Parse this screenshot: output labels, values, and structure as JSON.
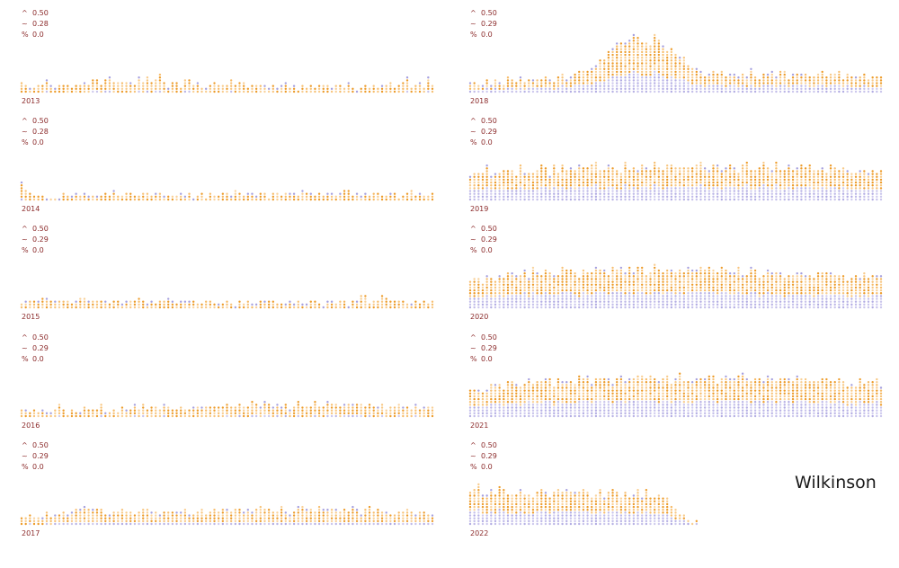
{
  "title": "Wilkinson",
  "stat_symbols": [
    "^",
    "~",
    "%"
  ],
  "colors": {
    "stat_text": "#8b2a2a",
    "warm": "#f3a12e",
    "cool": "#8f87d6",
    "title": "#1a1a1a"
  },
  "chart_data": [
    {
      "type": "scatter",
      "year": "2013",
      "stats": [
        "0.50",
        "0.28",
        "0.0"
      ],
      "intensity": 0.14,
      "peak": null,
      "profile": [
        4,
        3,
        2,
        2,
        3,
        3,
        5,
        3,
        2,
        3,
        4,
        3,
        2,
        3,
        3,
        4,
        3,
        5,
        4,
        3,
        5,
        6,
        5,
        4,
        3,
        4,
        4,
        3,
        5,
        4,
        6,
        4,
        5,
        7,
        4,
        3,
        4,
        3,
        2,
        5,
        5,
        3,
        4,
        3,
        2,
        3,
        4,
        4,
        3,
        2,
        4,
        3,
        4,
        4,
        3,
        2,
        3,
        3,
        3,
        2,
        3,
        2,
        2,
        3,
        2,
        3,
        2,
        2,
        2,
        3,
        2,
        3,
        3,
        4,
        2,
        3,
        3,
        2,
        3,
        2,
        2,
        2,
        3,
        2,
        3,
        2,
        3,
        3,
        4,
        2,
        3,
        4,
        5,
        2,
        3,
        4,
        2,
        6,
        3
      ]
    },
    {
      "type": "scatter",
      "year": "2014",
      "stats": [
        "0.50",
        "0.28",
        "0.0"
      ],
      "intensity": 0.1,
      "peak": null,
      "profile": [
        7,
        5,
        3,
        2,
        2,
        2,
        1,
        1,
        2,
        1,
        2,
        2,
        2,
        3,
        2,
        2,
        2,
        3,
        2,
        2,
        3,
        2,
        3,
        2,
        2,
        3,
        3,
        2,
        2,
        3,
        3,
        2,
        3,
        3,
        2,
        3,
        3,
        2,
        3,
        2,
        3,
        2,
        2,
        2,
        2,
        3,
        2,
        2,
        3,
        3,
        2,
        3,
        3,
        2,
        3,
        2,
        2,
        3,
        3,
        2,
        3,
        3,
        2,
        3,
        3,
        3,
        2,
        3,
        3,
        2,
        2,
        3,
        2,
        3,
        3,
        2,
        3,
        3,
        4,
        2,
        3,
        2,
        3,
        2,
        3,
        3,
        2,
        2,
        3,
        3,
        2,
        2,
        3,
        3,
        2,
        3,
        2,
        2,
        3
      ]
    },
    {
      "type": "scatter",
      "year": "2015",
      "stats": [
        "0.50",
        "0.29",
        "0.0"
      ],
      "intensity": 0.12,
      "peak": null,
      "profile": [
        2,
        3,
        2,
        3,
        3,
        4,
        3,
        3,
        2,
        4,
        3,
        4,
        3,
        3,
        4,
        4,
        3,
        3,
        2,
        3,
        3,
        2,
        2,
        3,
        2,
        3,
        3,
        3,
        4,
        3,
        2,
        3,
        2,
        3,
        3,
        4,
        3,
        2,
        3,
        3,
        2,
        2,
        2,
        3,
        2,
        3,
        2,
        2,
        2,
        3,
        2,
        2,
        3,
        2,
        3,
        2,
        3,
        3,
        2,
        3,
        3,
        2,
        2,
        2,
        3,
        2,
        3,
        2,
        2,
        3,
        3,
        2,
        2,
        3,
        3,
        2,
        3,
        3,
        2,
        3,
        3,
        4,
        5,
        3,
        3,
        3,
        4,
        4,
        3,
        3,
        3,
        3,
        2,
        2,
        3,
        2,
        3,
        2,
        3
      ]
    },
    {
      "type": "scatter",
      "year": "2016",
      "stats": [
        "0.50",
        "0.29",
        "0.0"
      ],
      "intensity": 0.14,
      "peak": null,
      "profile": [
        3,
        2,
        2,
        3,
        2,
        3,
        2,
        3,
        2,
        4,
        3,
        2,
        3,
        3,
        2,
        3,
        2,
        3,
        3,
        4,
        3,
        2,
        3,
        3,
        4,
        3,
        3,
        4,
        3,
        4,
        3,
        4,
        4,
        3,
        5,
        4,
        4,
        3,
        4,
        4,
        3,
        4,
        4,
        3,
        4,
        4,
        3,
        4,
        4,
        5,
        4,
        4,
        5,
        4,
        4,
        6,
        5,
        4,
        6,
        5,
        4,
        5,
        4,
        5,
        4,
        4,
        5,
        4,
        4,
        4,
        5,
        4,
        4,
        5,
        4,
        5,
        4,
        5,
        5,
        6,
        5,
        5,
        4,
        5,
        4,
        4,
        5,
        3,
        4,
        4,
        5,
        4,
        4,
        3,
        4,
        3,
        4,
        4,
        4
      ]
    },
    {
      "type": "scatter",
      "year": "2017",
      "stats": [
        "0.50",
        "0.29",
        "0.0"
      ],
      "intensity": 0.16,
      "peak": null,
      "profile": [
        3,
        3,
        4,
        3,
        4,
        3,
        4,
        3,
        4,
        4,
        5,
        4,
        6,
        5,
        6,
        7,
        5,
        6,
        5,
        6,
        5,
        4,
        5,
        5,
        6,
        5,
        5,
        4,
        5,
        5,
        6,
        5,
        5,
        4,
        5,
        4,
        5,
        5,
        5,
        6,
        4,
        5,
        4,
        5,
        4,
        5,
        6,
        5,
        5,
        6,
        5,
        6,
        6,
        5,
        6,
        5,
        6,
        7,
        6,
        6,
        5,
        6,
        7,
        6,
        5,
        6,
        7,
        6,
        5,
        6,
        6,
        7,
        5,
        6,
        6,
        6,
        5,
        6,
        5,
        6,
        6,
        5,
        5,
        6,
        6,
        5,
        5,
        6,
        5,
        4,
        5,
        5,
        6,
        5,
        4,
        5,
        5,
        4,
        4
      ]
    },
    {
      "type": "scatter",
      "year": "2018",
      "stats": [
        "0.50",
        "0.29",
        "0.0"
      ],
      "intensity": 0.45,
      "peak": 50,
      "profile": [
        4,
        3,
        4,
        3,
        4,
        4,
        5,
        4,
        3,
        5,
        4,
        4,
        5,
        4,
        4,
        5,
        4,
        5,
        5,
        4,
        5,
        5,
        6,
        5,
        6,
        7,
        7,
        8,
        9,
        10,
        11,
        12,
        13,
        14,
        16,
        17,
        18,
        19,
        20,
        20,
        20,
        19,
        19,
        18,
        20,
        19,
        17,
        16,
        15,
        14,
        13,
        12,
        11,
        10,
        9,
        8,
        7,
        7,
        7,
        6,
        7,
        6,
        7,
        6,
        7,
        6,
        7,
        8,
        7,
        6,
        7,
        6,
        7,
        6,
        7,
        8,
        6,
        7,
        6,
        7,
        7,
        6,
        7,
        6,
        7,
        6,
        7,
        6,
        7,
        6,
        7,
        7,
        6,
        6,
        7,
        6,
        7,
        6,
        7
      ]
    },
    {
      "type": "scatter",
      "year": "2019",
      "stats": [
        "0.50",
        "0.29",
        "0.0"
      ],
      "intensity": 0.5,
      "peak": 60,
      "profile": [
        8,
        10,
        9,
        11,
        12,
        10,
        9,
        11,
        12,
        10,
        11,
        9,
        12,
        11,
        10,
        11,
        12,
        13,
        11,
        10,
        12,
        11,
        13,
        12,
        11,
        12,
        13,
        11,
        12,
        14,
        13,
        12,
        11,
        12,
        13,
        12,
        11,
        13,
        12,
        11,
        12,
        14,
        12,
        11,
        13,
        12,
        11,
        12,
        13,
        12,
        11,
        12,
        13,
        11,
        12,
        13,
        12,
        11,
        12,
        13,
        12,
        11,
        13,
        12,
        11,
        12,
        13,
        12,
        11,
        12,
        13,
        11,
        12,
        13,
        12,
        11,
        12,
        11,
        12,
        13,
        11,
        12,
        11,
        12,
        13,
        11,
        12,
        11,
        10,
        11,
        12,
        11,
        10,
        11,
        10,
        11,
        10,
        9,
        10
      ]
    },
    {
      "type": "scatter",
      "year": "2020",
      "stats": [
        "0.50",
        "0.29",
        "0.0"
      ],
      "intensity": 0.5,
      "peak": 60,
      "profile": [
        9,
        10,
        11,
        10,
        12,
        11,
        10,
        12,
        11,
        12,
        13,
        11,
        12,
        13,
        12,
        14,
        13,
        12,
        13,
        14,
        13,
        12,
        14,
        13,
        14,
        13,
        12,
        13,
        14,
        13,
        14,
        15,
        14,
        13,
        14,
        15,
        14,
        13,
        14,
        13,
        15,
        14,
        13,
        14,
        15,
        14,
        13,
        14,
        15,
        14,
        13,
        14,
        15,
        14,
        13,
        14,
        13,
        14,
        15,
        13,
        14,
        13,
        14,
        13,
        14,
        13,
        12,
        14,
        13,
        12,
        13,
        14,
        13,
        12,
        13,
        12,
        13,
        12,
        13,
        14,
        12,
        13,
        12,
        13,
        14,
        12,
        13,
        12,
        13,
        12,
        11,
        12,
        13,
        11,
        12,
        11,
        12,
        11,
        12
      ]
    },
    {
      "type": "scatter",
      "year": "2021",
      "stats": [
        "0.50",
        "0.29",
        "0.0"
      ],
      "intensity": 0.5,
      "peak": 60,
      "profile": [
        9,
        10,
        11,
        10,
        11,
        12,
        11,
        12,
        11,
        12,
        13,
        12,
        11,
        12,
        13,
        12,
        13,
        12,
        13,
        14,
        12,
        13,
        14,
        13,
        12,
        13,
        14,
        13,
        14,
        13,
        14,
        15,
        13,
        14,
        13,
        14,
        15,
        14,
        13,
        14,
        15,
        14,
        13,
        14,
        15,
        14,
        15,
        14,
        13,
        14,
        15,
        14,
        13,
        14,
        15,
        14,
        13,
        14,
        15,
        13,
        14,
        15,
        14,
        13,
        14,
        15,
        14,
        13,
        14,
        15,
        13,
        14,
        13,
        14,
        15,
        13,
        14,
        13,
        14,
        13,
        14,
        13,
        14,
        13,
        14,
        13,
        12,
        13,
        14,
        13,
        12,
        13,
        12,
        13,
        12,
        13,
        12,
        13,
        12
      ]
    },
    {
      "type": "scatter",
      "year": "2022",
      "stats": [
        "0.50",
        "0.29",
        "0.0"
      ],
      "intensity": 0.5,
      "peak": 60,
      "profile": [
        12,
        13,
        14,
        12,
        11,
        13,
        12,
        14,
        13,
        12,
        11,
        12,
        13,
        11,
        12,
        10,
        11,
        12,
        13,
        11,
        12,
        13,
        11,
        12,
        13,
        12,
        11,
        13,
        12,
        11,
        12,
        13,
        11,
        12,
        13,
        12,
        11,
        12,
        11,
        12,
        13,
        11,
        12,
        11,
        10,
        11,
        10,
        9,
        8,
        7,
        5,
        4,
        3,
        2,
        1
      ]
    }
  ]
}
